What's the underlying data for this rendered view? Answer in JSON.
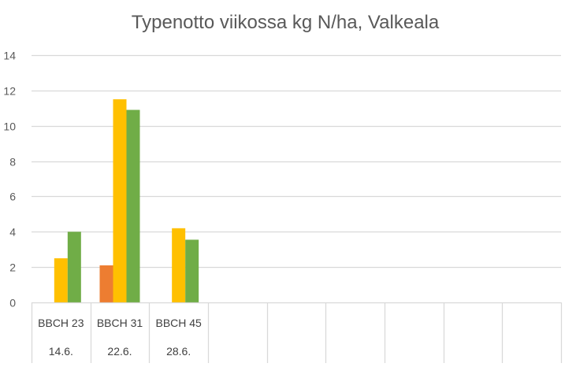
{
  "chart_data": {
    "type": "bar",
    "title": "Typenotto viikossa kg N/ha, Valkeala",
    "xlabel": "",
    "ylabel": "",
    "ylim": [
      0,
      14
    ],
    "yticks": [
      "0",
      "2",
      "4",
      "6",
      "8",
      "10",
      "12",
      "14"
    ],
    "grid": true,
    "legend": "none",
    "categories": [
      {
        "label": "BBCH 23",
        "sublabel": "14.6."
      },
      {
        "label": "BBCH 31",
        "sublabel": "22.6."
      },
      {
        "label": "BBCH 45",
        "sublabel": "28.6."
      },
      {
        "label": "",
        "sublabel": ""
      },
      {
        "label": "",
        "sublabel": ""
      },
      {
        "label": "",
        "sublabel": ""
      },
      {
        "label": "",
        "sublabel": ""
      },
      {
        "label": "",
        "sublabel": ""
      },
      {
        "label": "",
        "sublabel": ""
      }
    ],
    "series": [
      {
        "color": "#ED7D31",
        "values": [
          null,
          2.1,
          null,
          null,
          null,
          null,
          null,
          null,
          null
        ]
      },
      {
        "color": "#FFC000",
        "values": [
          2.5,
          11.5,
          4.2,
          null,
          null,
          null,
          null,
          null,
          null
        ]
      },
      {
        "color": "#70AD47",
        "values": [
          4.0,
          10.9,
          3.55,
          null,
          null,
          null,
          null,
          null,
          null
        ]
      }
    ],
    "colors": {
      "grid": "#D9D9D9",
      "text": "#595959"
    }
  }
}
